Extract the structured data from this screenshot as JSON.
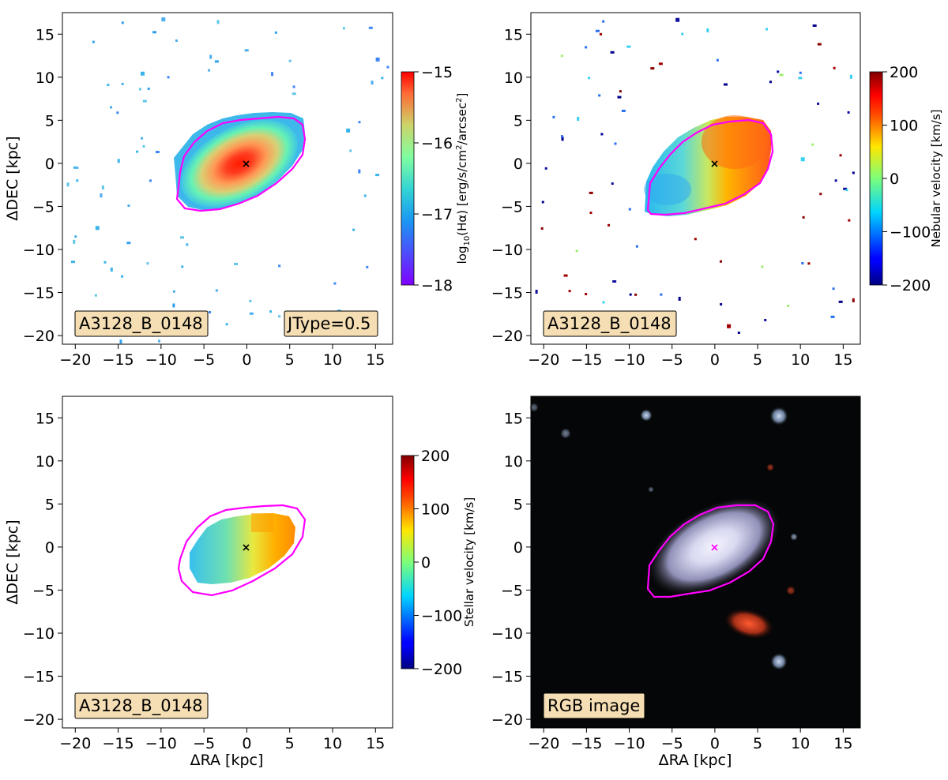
{
  "figure": {
    "xlabel": "ΔRA [kpc]",
    "ylabel": "ΔDEC [kpc]",
    "xlim": [
      -21.5,
      17
    ],
    "ylim": [
      -21,
      17.5
    ],
    "xticks": [
      -20,
      -15,
      -10,
      -5,
      0,
      5,
      10,
      15
    ],
    "yticks": [
      -20,
      -15,
      -10,
      -5,
      0,
      5,
      10,
      15
    ],
    "xtick_labels": [
      "−20",
      "−15",
      "−10",
      "−5",
      "0",
      "5",
      "10",
      "15"
    ],
    "ytick_labels": [
      "−20",
      "−15",
      "−10",
      "−5",
      "0",
      "5",
      "10",
      "15"
    ],
    "contour_color": "#ff00ff",
    "tag_bg": "#f5deb3"
  },
  "chart_data": [
    {
      "type": "heatmap",
      "id": "halpha",
      "map": "halpha",
      "tags": [
        "A3128_B_0148",
        "JType=0.5"
      ],
      "colorbar": {
        "label": "log10(Hα) [erg/s/cm²/arcsec²]",
        "label_parts": [
          "log",
          "10",
          "(Hα) [erg/s/cm",
          "2",
          "/arcsec",
          "2",
          "]"
        ],
        "range": [
          -18,
          -15
        ],
        "ticks": [
          -18,
          -17,
          -16,
          -15
        ],
        "tick_labels": [
          "−18",
          "−17",
          "−16",
          "−15"
        ],
        "cmap": "rainbow"
      },
      "show_xlabel": false,
      "show_ylabel": true
    },
    {
      "type": "heatmap",
      "id": "nebular",
      "map": "nebular",
      "tags": [
        "A3128_B_0148"
      ],
      "colorbar": {
        "label": "Nebular velocity [km/s]",
        "range": [
          -200,
          200
        ],
        "ticks": [
          -200,
          -100,
          0,
          100,
          200
        ],
        "tick_labels": [
          "−200",
          "−100",
          "0",
          "100",
          "200"
        ],
        "cmap": "jet"
      },
      "show_xlabel": false,
      "show_ylabel": false
    },
    {
      "type": "heatmap",
      "id": "stellar",
      "map": "stellar",
      "tags": [
        "A3128_B_0148"
      ],
      "colorbar": {
        "label": "Stellar velocity [km/s]",
        "range": [
          -200,
          200
        ],
        "ticks": [
          -200,
          -100,
          0,
          100,
          200
        ],
        "tick_labels": [
          "−200",
          "−100",
          "0",
          "100",
          "200"
        ],
        "cmap": "jet"
      },
      "show_xlabel": true,
      "show_ylabel": true
    },
    {
      "type": "heatmap",
      "id": "rgb",
      "map": "rgb",
      "tags": [
        "RGB image"
      ],
      "colorbar": null,
      "show_xlabel": true,
      "show_ylabel": false
    }
  ]
}
